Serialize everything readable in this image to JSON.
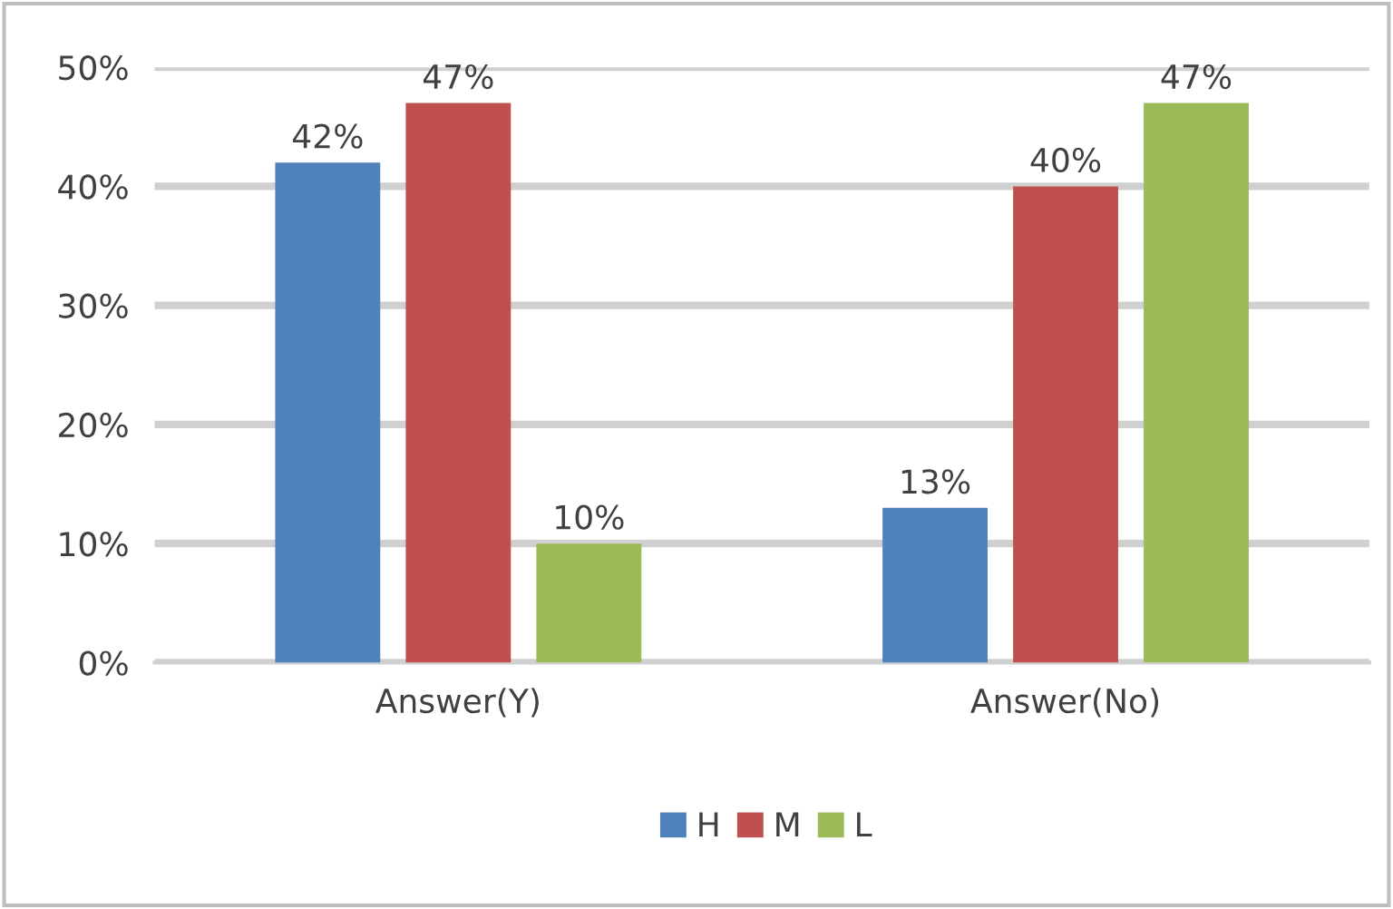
{
  "chart_data": {
    "type": "bar",
    "categories": [
      "Answer(Y)",
      "Answer(No)"
    ],
    "series": [
      {
        "name": "H",
        "color": "#4f81bd",
        "values": [
          42,
          13
        ],
        "value_labels": [
          "42%",
          "13%"
        ]
      },
      {
        "name": "M",
        "color": "#c0504d",
        "values": [
          47,
          40
        ],
        "value_labels": [
          "47%",
          "40%"
        ]
      },
      {
        "name": "L",
        "color": "#9bbb59",
        "values": [
          10,
          47
        ],
        "value_labels": [
          "10%",
          "47%"
        ]
      }
    ],
    "ylim": [
      0,
      50
    ],
    "yticks": [
      {
        "value": 0,
        "label": "0%"
      },
      {
        "value": 10,
        "label": "10%"
      },
      {
        "value": 20,
        "label": "20%"
      },
      {
        "value": 30,
        "label": "30%"
      },
      {
        "value": 40,
        "label": "40%"
      },
      {
        "value": 50,
        "label": "50%"
      }
    ],
    "grid": "y",
    "legend": "bottom"
  }
}
